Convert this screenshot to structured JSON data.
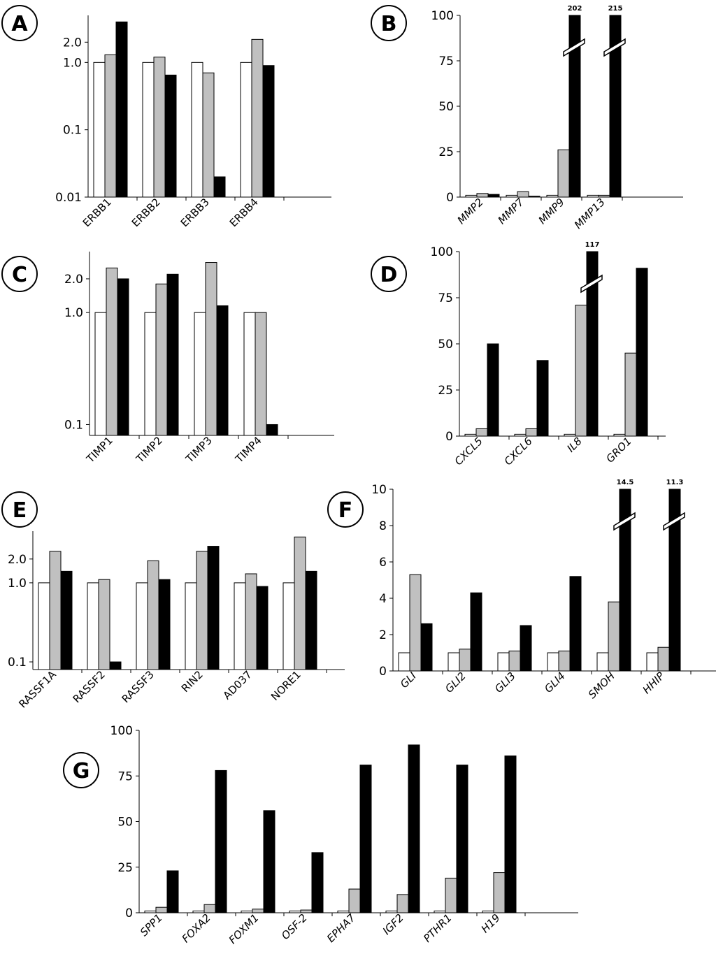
{
  "figure": {
    "colors": {
      "series1": "#ffffff",
      "series2": "#c0c0c0",
      "series3": "#000000",
      "axis": "#000000"
    }
  },
  "chart_data": [
    {
      "panel": "A",
      "type": "bar",
      "yscale": "log",
      "ylim": [
        0.01,
        5
      ],
      "yticks": [
        0.01,
        0.1,
        1.0,
        2.0
      ],
      "ytick_labels": [
        "0.01",
        "0.1",
        "1.0",
        "2.0"
      ],
      "categories": [
        "ERBB1",
        "ERBB2",
        "ERBB3",
        "ERBB4"
      ],
      "category_style": "normal",
      "series": [
        {
          "values": [
            1.0,
            1.0,
            1.0,
            1.0
          ]
        },
        {
          "values": [
            1.3,
            1.2,
            0.7,
            2.2
          ]
        },
        {
          "values": [
            4.0,
            0.65,
            0.02,
            0.9
          ]
        }
      ],
      "breaks": []
    },
    {
      "panel": "B",
      "type": "bar",
      "yscale": "linear",
      "ylim": [
        0,
        100
      ],
      "yticks": [
        0,
        25,
        50,
        75,
        100
      ],
      "ytick_labels": [
        "0",
        "25",
        "50",
        "75",
        "100"
      ],
      "categories": [
        "MMP2",
        "MMP7",
        "MMP9",
        "MMP13"
      ],
      "category_style": "italic",
      "series": [
        {
          "values": [
            1,
            1,
            1,
            1
          ]
        },
        {
          "values": [
            2,
            3,
            26,
            1
          ]
        },
        {
          "values": [
            1.5,
            0.5,
            202,
            215
          ]
        }
      ],
      "breaks": [
        {
          "category": 2,
          "label": "202"
        },
        {
          "category": 3,
          "label": "215"
        }
      ]
    },
    {
      "panel": "C",
      "type": "bar",
      "yscale": "log",
      "ylim": [
        0.08,
        3.5
      ],
      "yticks": [
        0.1,
        1.0,
        2.0
      ],
      "ytick_labels": [
        "0.1",
        "1.0",
        "2.0"
      ],
      "categories": [
        "TIMP1",
        "TIMP2",
        "TIMP3",
        "TIMP4"
      ],
      "category_style": "normal",
      "series": [
        {
          "values": [
            1.0,
            1.0,
            1.0,
            1.0
          ]
        },
        {
          "values": [
            2.5,
            1.8,
            2.8,
            1.0
          ]
        },
        {
          "values": [
            2.0,
            2.2,
            1.15,
            0.1
          ]
        }
      ],
      "breaks": []
    },
    {
      "panel": "D",
      "type": "bar",
      "yscale": "linear",
      "ylim": [
        0,
        100
      ],
      "yticks": [
        0,
        25,
        50,
        75,
        100
      ],
      "ytick_labels": [
        "0",
        "25",
        "50",
        "75",
        "100"
      ],
      "categories": [
        "CXCL5",
        "CXCL6",
        "IL8",
        "GRO1"
      ],
      "category_style": "italic",
      "series": [
        {
          "values": [
            1,
            1,
            1,
            1
          ]
        },
        {
          "values": [
            4,
            4,
            71,
            45
          ]
        },
        {
          "values": [
            50,
            41,
            117,
            91
          ]
        }
      ],
      "breaks": [
        {
          "category": 2,
          "label": "117"
        }
      ]
    },
    {
      "panel": "E",
      "type": "bar",
      "yscale": "log",
      "ylim": [
        0.08,
        4.5
      ],
      "yticks": [
        0.1,
        1.0,
        2.0
      ],
      "ytick_labels": [
        "0.1",
        "1.0",
        "2.0"
      ],
      "categories": [
        "RASSF1A",
        "RASSF2",
        "RASSF3",
        "RIN2",
        "AD037",
        "NORE1"
      ],
      "category_style": "normal",
      "series": [
        {
          "values": [
            1.0,
            1.0,
            1.0,
            1.0,
            1.0,
            1.0
          ]
        },
        {
          "values": [
            2.5,
            1.1,
            1.9,
            2.5,
            1.3,
            3.8
          ]
        },
        {
          "values": [
            1.4,
            0.1,
            1.1,
            2.9,
            0.9,
            1.4
          ]
        }
      ],
      "breaks": []
    },
    {
      "panel": "F",
      "type": "bar",
      "yscale": "linear",
      "ylim": [
        0,
        10
      ],
      "yticks": [
        0,
        2,
        4,
        6,
        8,
        10
      ],
      "ytick_labels": [
        "0",
        "2",
        "4",
        "6",
        "8",
        "10"
      ],
      "categories": [
        "GLI",
        "GLI2",
        "GLI3",
        "GLI4",
        "SMOH",
        "HHIP"
      ],
      "category_style": "italic",
      "series": [
        {
          "values": [
            1.0,
            1.0,
            1.0,
            1.0,
            1.0,
            1.0
          ]
        },
        {
          "values": [
            5.3,
            1.2,
            1.1,
            1.1,
            3.8,
            1.3
          ]
        },
        {
          "values": [
            2.6,
            4.3,
            2.5,
            5.2,
            14.5,
            11.3
          ]
        }
      ],
      "breaks": [
        {
          "category": 4,
          "label": "14.5"
        },
        {
          "category": 5,
          "label": "11.3"
        }
      ]
    },
    {
      "panel": "G",
      "type": "bar",
      "yscale": "linear",
      "ylim": [
        0,
        100
      ],
      "yticks": [
        0,
        25,
        50,
        75,
        100
      ],
      "ytick_labels": [
        "0",
        "25",
        "50",
        "75",
        "100"
      ],
      "categories": [
        "SPP1",
        "FOXA2",
        "FOXM1",
        "OSF-2",
        "EPHA7",
        "IGF2",
        "PTHR1",
        "H19"
      ],
      "category_style": "italic",
      "series": [
        {
          "values": [
            1,
            1,
            1,
            1,
            1,
            1,
            1,
            1
          ]
        },
        {
          "values": [
            3,
            4.5,
            2,
            1.5,
            13,
            10,
            19,
            22
          ]
        },
        {
          "values": [
            23,
            78,
            56,
            33,
            81,
            92,
            81,
            86
          ]
        }
      ],
      "breaks": []
    }
  ]
}
